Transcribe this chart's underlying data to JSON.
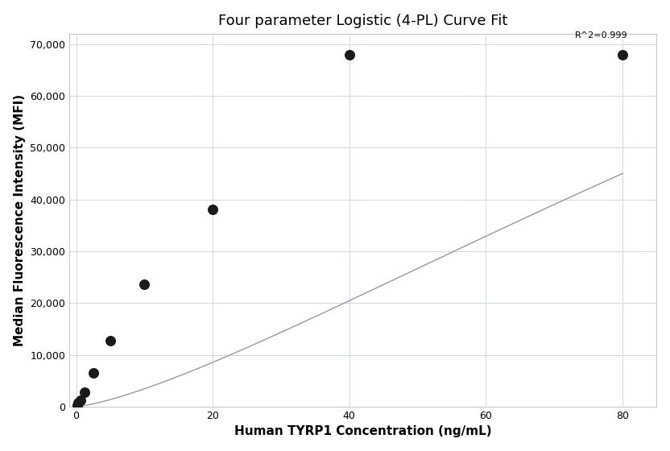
{
  "title": "Four parameter Logistic (4-PL) Curve Fit",
  "xlabel": "Human TYRP1 Concentration (ng/mL)",
  "ylabel": "Median Fluorescence Intensity (MFI)",
  "scatter_x": [
    0.156,
    0.313,
    0.625,
    1.25,
    2.5,
    5.0,
    10.0,
    20.0,
    40.0,
    80.0
  ],
  "scatter_y": [
    350,
    700,
    1300,
    2800,
    6500,
    12700,
    23600,
    38000,
    68000,
    68000
  ],
  "xlim": [
    -1,
    85
  ],
  "ylim": [
    0,
    72000
  ],
  "yticks": [
    0,
    10000,
    20000,
    30000,
    40000,
    50000,
    60000,
    70000
  ],
  "xticks": [
    0,
    20,
    40,
    60,
    80
  ],
  "r_squared": "R^2=0.999",
  "curve_color": "#999999",
  "scatter_color": "#1a1a1a",
  "grid_color": "#ccd9e8",
  "background_color": "#ffffff",
  "title_fontsize": 13,
  "label_fontsize": 11,
  "annotation_fontsize": 8,
  "4pl_a": 0,
  "4pl_d": 200000,
  "4pl_c": 200,
  "4pl_b": 1.35
}
